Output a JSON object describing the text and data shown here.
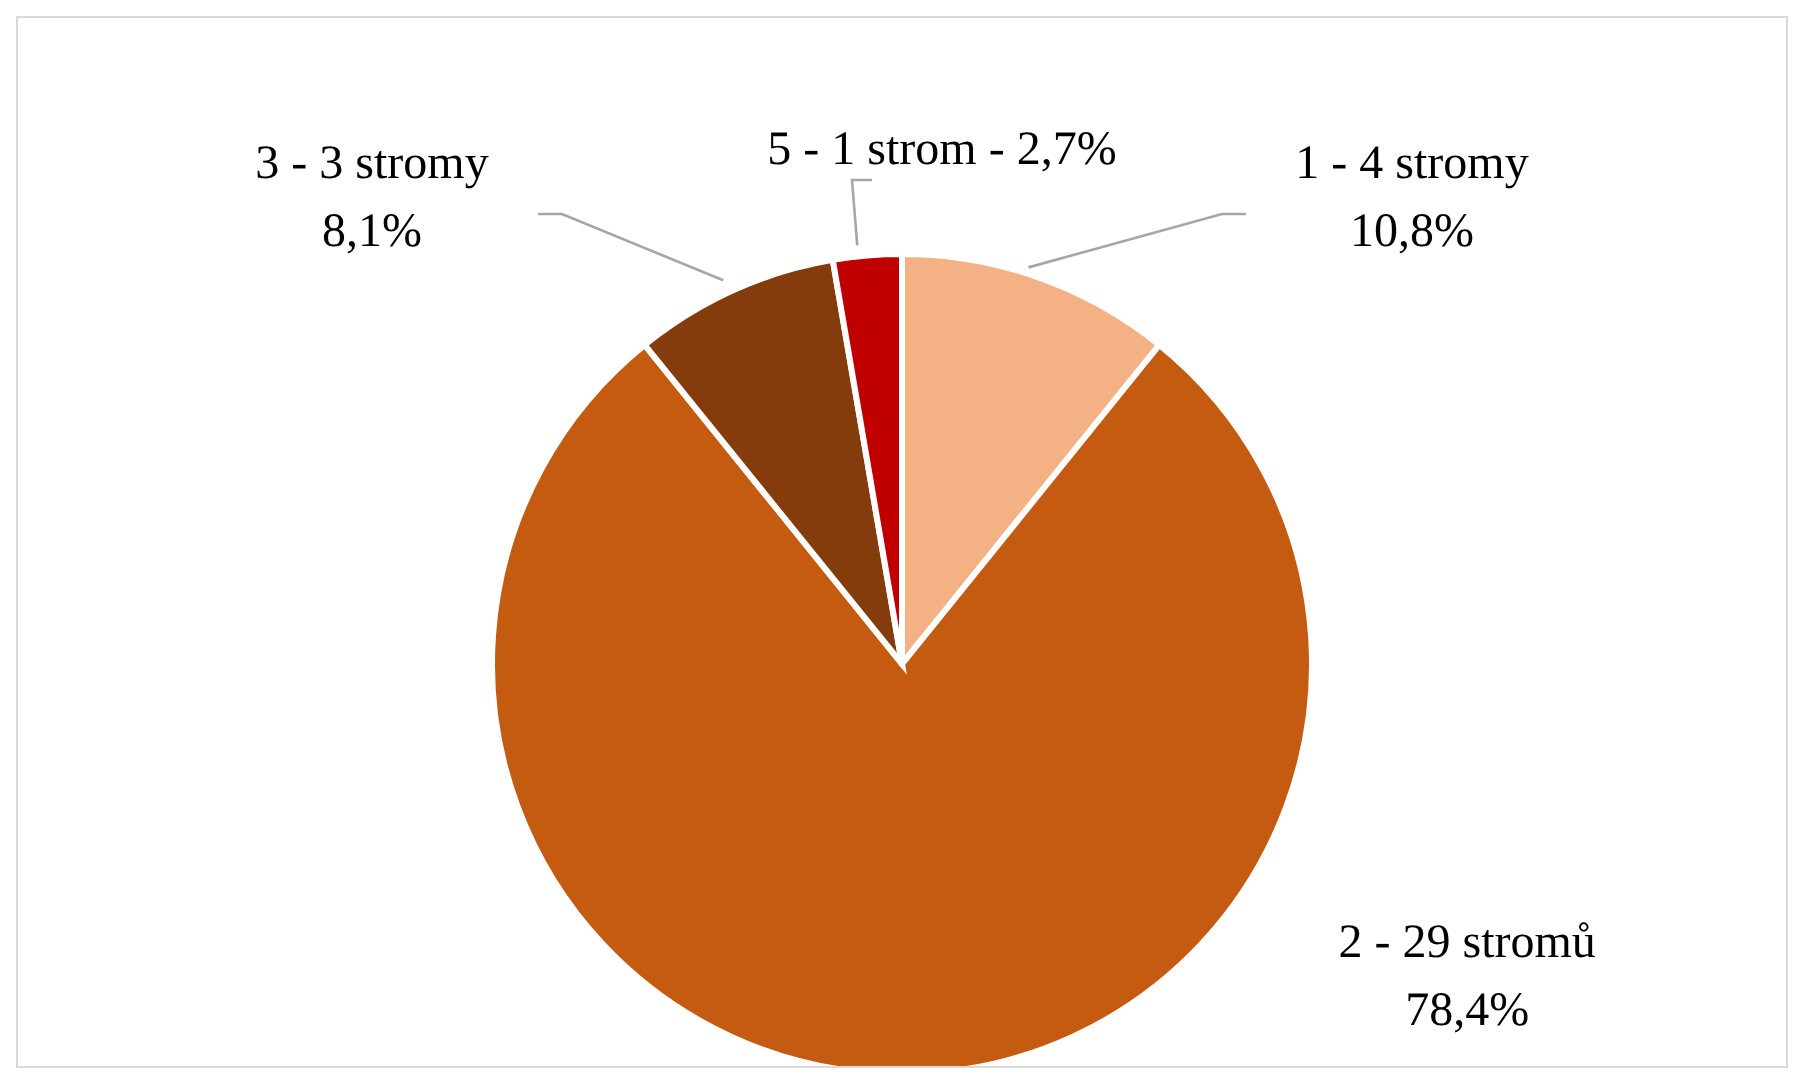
{
  "chart_data": {
    "type": "pie",
    "categories": [
      "1 - 4 stromy",
      "2 - 29 stromů",
      "3 - 3 stromy",
      "5 - 1 strom"
    ],
    "values": [
      10.8,
      78.4,
      8.1,
      2.7
    ],
    "value_labels": [
      "10,8%",
      "78,4%",
      "8,1%",
      "2,7%"
    ],
    "colors": [
      "#f4b183",
      "#c55a11",
      "#843c0c",
      "#c00000"
    ],
    "legend": false
  }
}
